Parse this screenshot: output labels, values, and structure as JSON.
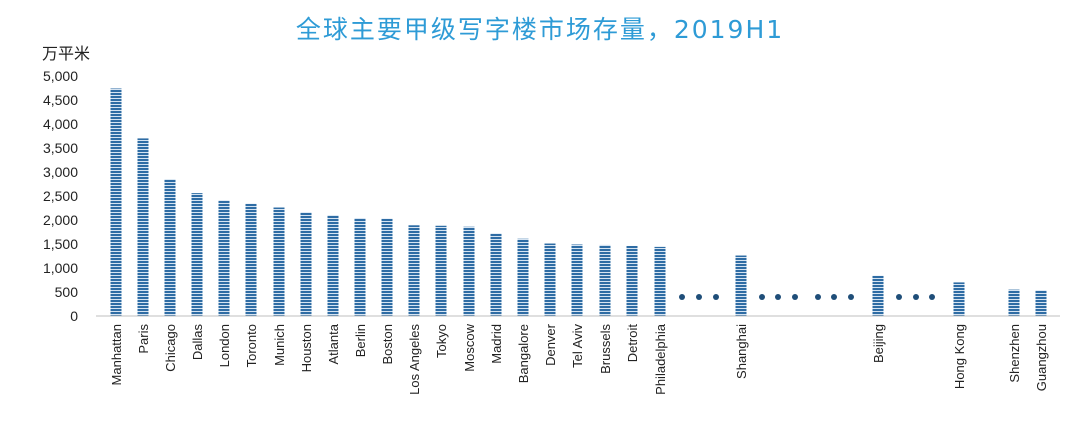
{
  "chart_data": {
    "type": "bar",
    "title": "全球主要甲级写字楼市场存量，2019H1",
    "ylabel": "万平米",
    "ylim": [
      0,
      5000
    ],
    "yticks": [
      "0",
      "500",
      "1,000",
      "1,500",
      "2,000",
      "2,500",
      "3,000",
      "3,500",
      "4,000",
      "4,500",
      "5,000"
    ],
    "categories": [
      "Manhattan",
      "Paris",
      "Chicago",
      "Dallas",
      "London",
      "Toronto",
      "Munich",
      "Houston",
      "Atlanta",
      "Berlin",
      "Boston",
      "Los Angeles",
      "Tokyo",
      "Moscow",
      "Madrid",
      "Bangalore",
      "Denver",
      "Tel Aviv",
      "Brussels",
      "Detroit",
      "Philadelphia",
      "Shanghai",
      "Beijing",
      "Hong Kong",
      "Shenzhen",
      "Guangzhou"
    ],
    "values": [
      4740,
      3700,
      2850,
      2560,
      2410,
      2340,
      2260,
      2160,
      2100,
      2040,
      2030,
      1890,
      1880,
      1860,
      1720,
      1610,
      1510,
      1490,
      1480,
      1460,
      1440,
      1260,
      840,
      700,
      550,
      535
    ],
    "bar_color": "#2E6CA4",
    "ellipsis_color": "#1F4E79",
    "grid": false
  }
}
